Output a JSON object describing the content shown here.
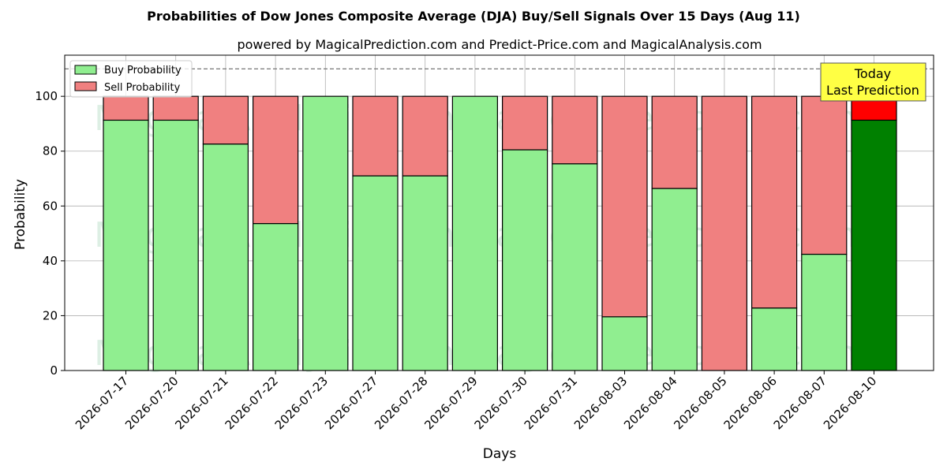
{
  "chart_data": {
    "type": "bar",
    "stacked": true,
    "title": "Probabilities of Dow Jones Composite Average (DJA) Buy/Sell Signals Over 15 Days (Aug 11)",
    "subtitle": "powered by MagicalPrediction.com and Predict-Price.com and MagicalAnalysis.com",
    "xlabel": "Days",
    "ylabel": "Probability",
    "ylim": [
      0,
      115
    ],
    "yticks": [
      0,
      20,
      40,
      60,
      80,
      100
    ],
    "grid": true,
    "legend_placement": "top-left",
    "reference_line": 110,
    "categories": [
      "2026-07-17",
      "2026-07-20",
      "2026-07-21",
      "2026-07-22",
      "2026-07-23",
      "2026-07-27",
      "2026-07-28",
      "2026-07-29",
      "2026-07-30",
      "2026-07-31",
      "2026-08-03",
      "2026-08-04",
      "2026-08-05",
      "2026-08-06",
      "2026-08-07",
      "2026-08-10"
    ],
    "series": [
      {
        "name": "Buy Probability",
        "color": "#90ee90",
        "values": [
          91.3,
          91.3,
          82.6,
          53.6,
          100,
          71.0,
          71.0,
          100,
          80.5,
          75.4,
          19.6,
          66.4,
          0,
          22.8,
          42.4,
          91.3
        ]
      },
      {
        "name": "Sell Probability",
        "color": "#f08080",
        "values": [
          8.7,
          8.7,
          17.4,
          46.4,
          0,
          29.0,
          29.0,
          0,
          19.5,
          24.6,
          80.4,
          33.6,
          100,
          77.2,
          57.6,
          8.7
        ]
      }
    ],
    "highlight": {
      "index": 15,
      "buy_color": "#008000",
      "sell_color": "#ff0000"
    },
    "annotation": {
      "lines": [
        "Today",
        "Last Prediction"
      ],
      "color": "#ffff44"
    },
    "watermarks": [
      "MagicalAnalysis.com",
      "MagicalPrediction.com"
    ]
  }
}
